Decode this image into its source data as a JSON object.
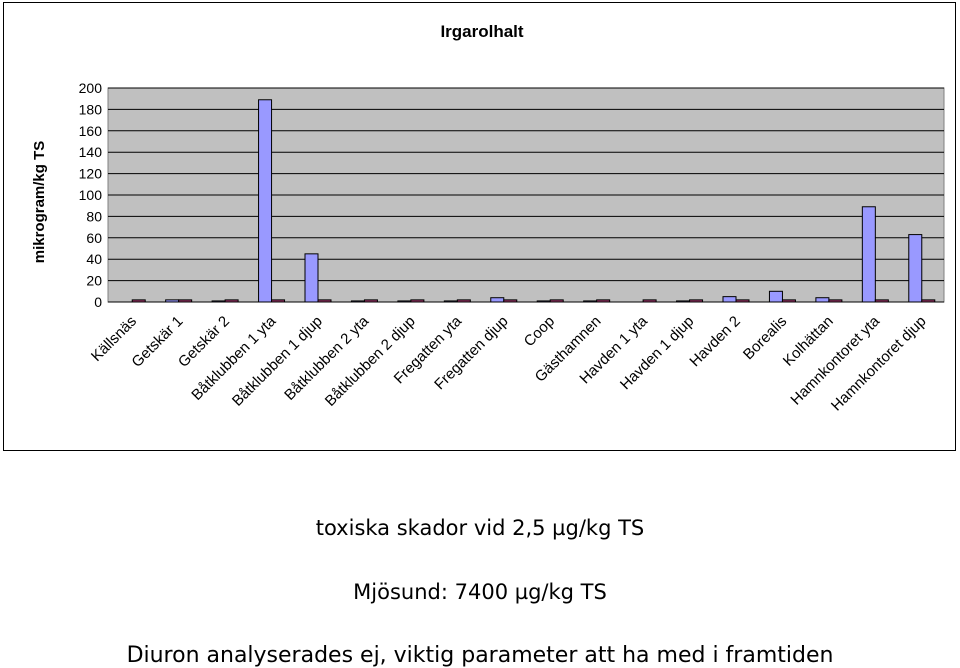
{
  "chart_data": {
    "type": "bar",
    "title": "Irgarolhalt",
    "ylabel": "mikrogram/kg TS",
    "xlabel": "",
    "ylim": [
      0,
      200
    ],
    "yticks": [
      0,
      20,
      40,
      60,
      80,
      100,
      120,
      140,
      160,
      180,
      200
    ],
    "grid": true,
    "legend": "none",
    "categories": [
      "Källsnäs",
      "Getskär 1",
      "Getskär 2",
      "Båtklubben 1 yta",
      "Båtklubben 1 djup",
      "Båtklubben 2 yta",
      "Båtklubben 2 djup",
      "Fregatten yta",
      "Fregatten djup",
      "Coop",
      "Gästhamnen",
      "Havden 1 yta",
      "Havden 1 djup",
      "Havden 2",
      "Borealis",
      "Kolhättan",
      "Hamnkontoret yta",
      "Hamnkontoret djup"
    ],
    "series": [
      {
        "color": "#9999ff",
        "values": [
          0,
          2,
          1,
          189,
          45,
          1,
          1,
          1,
          4,
          1,
          1,
          0,
          1,
          5,
          10,
          4,
          89,
          63
        ]
      },
      {
        "color": "#993366",
        "values": [
          2,
          2,
          2,
          2,
          2,
          2,
          2,
          2,
          2,
          2,
          2,
          2,
          2,
          2,
          2,
          2,
          2,
          2
        ]
      }
    ]
  },
  "notes": {
    "line1": "toxiska skador vid 2,5 µg/kg TS",
    "line2": "Mjösund: 7400 µg/kg TS",
    "line3": "Diuron analyserades ej, viktig parameter att ha med i framtiden"
  }
}
